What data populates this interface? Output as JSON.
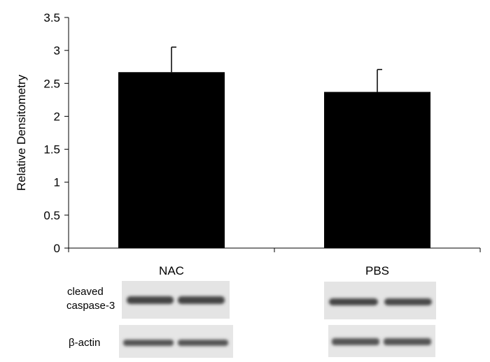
{
  "chart_data": {
    "type": "bar",
    "categories": [
      "NAC",
      "PBS"
    ],
    "values": [
      2.67,
      2.37
    ],
    "errors": [
      0.38,
      0.34
    ],
    "ylabel": "Relative Densitometry",
    "xlabel": "",
    "ylim": [
      0,
      3.5
    ],
    "yticks": [
      0,
      0.5,
      1,
      1.5,
      2,
      2.5,
      3,
      3.5
    ],
    "ytick_labels": [
      "0",
      "0.5",
      "1",
      "1.5",
      "2",
      "2.5",
      "3",
      "3.5"
    ],
    "bar_color": "#000000",
    "grid": false,
    "legend": "none"
  },
  "blot": {
    "row_labels": {
      "caspase_line1": "cleaved",
      "caspase_line2": "caspase-3",
      "actin": "β-actin"
    }
  }
}
